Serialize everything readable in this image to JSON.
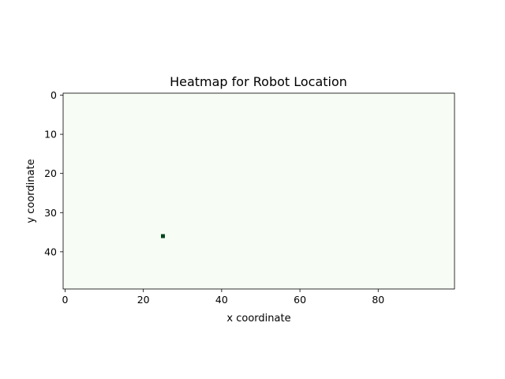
{
  "chart_data": {
    "type": "heatmap",
    "title": "Heatmap for Robot Location",
    "xlabel": "x coordinate",
    "ylabel": "y coordinate",
    "grid_width": 100,
    "grid_height": 50,
    "xlim": [
      -0.5,
      99.5
    ],
    "ylim": [
      49.5,
      -0.5
    ],
    "y_axis_inverted": true,
    "x_ticks": [
      0,
      20,
      40,
      60,
      80
    ],
    "y_ticks": [
      0,
      10,
      20,
      30,
      40
    ],
    "x_tick_labels": [
      "0",
      "20",
      "40",
      "60",
      "80"
    ],
    "y_tick_labels": [
      "0",
      "10",
      "20",
      "30",
      "40"
    ],
    "colormap": "Greens",
    "background_color": "#f7fcf5",
    "hot_color": "#00441b",
    "grid": false,
    "cells": [
      {
        "x": 25,
        "y": 36,
        "value": 1
      }
    ]
  }
}
